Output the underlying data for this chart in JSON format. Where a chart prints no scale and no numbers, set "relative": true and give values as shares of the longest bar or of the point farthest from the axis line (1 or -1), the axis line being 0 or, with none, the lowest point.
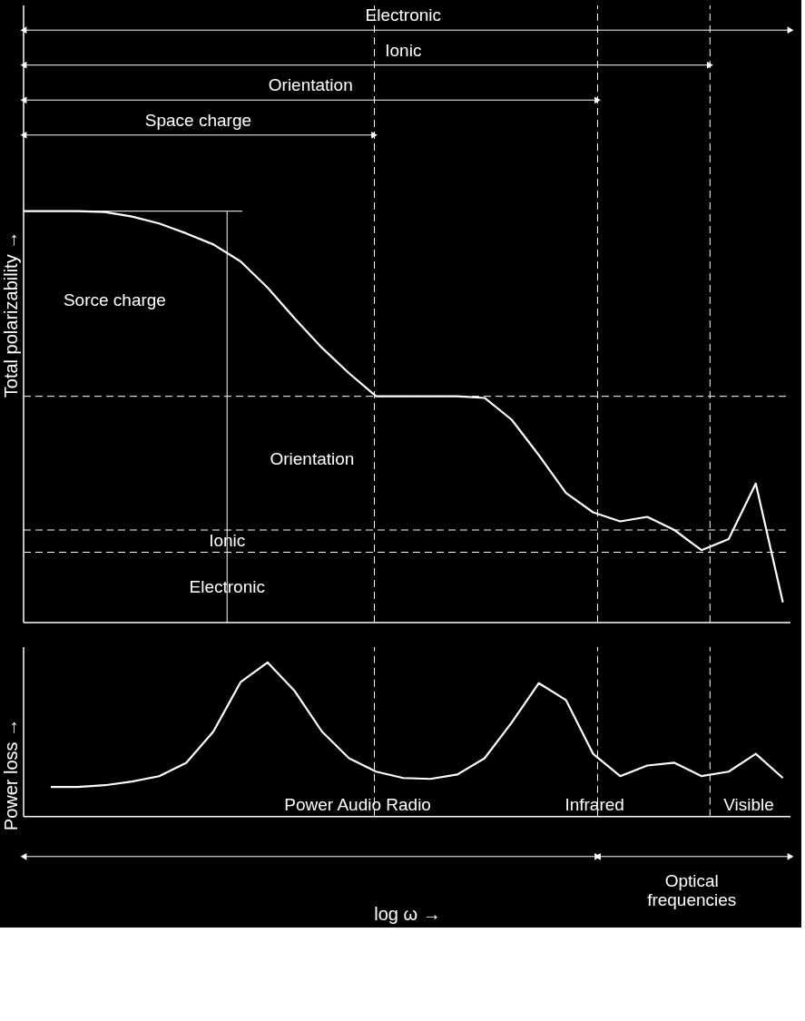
{
  "chart_data": [
    {
      "type": "line",
      "relative": true,
      "ylabel": "Total polarizability →",
      "grid": false,
      "line_style": "solid",
      "categories": [
        null,
        null,
        null,
        null,
        null,
        null,
        null,
        null,
        null,
        null,
        null,
        null,
        null,
        null,
        null,
        null,
        null,
        null,
        null,
        null,
        null,
        null,
        null,
        null,
        null,
        null,
        null,
        null,
        null
      ],
      "series": [
        {
          "color": "#ffffff",
          "values": [
            1.0,
            1.0,
            1.0,
            0.998,
            0.987,
            0.97,
            0.946,
            0.919,
            0.878,
            0.814,
            0.739,
            0.668,
            0.606,
            0.55,
            0.55,
            0.55,
            0.55,
            0.546,
            0.493,
            0.407,
            0.315,
            0.268,
            0.246,
            0.257,
            0.225,
            0.176,
            0.203,
            0.338,
            0.049
          ]
        }
      ],
      "ref_lines": [
        {
          "axis": "y",
          "value": 0.55,
          "line_style": "dashed"
        },
        {
          "axis": "y",
          "value": 0.225,
          "line_style": "dashed"
        },
        {
          "axis": "y",
          "value": 0.171,
          "line_style": "dashed"
        }
      ],
      "annotations": [
        "Electronic",
        "Ionic",
        "Orientation",
        "Space charge",
        "Sorce charge",
        "Orientation",
        "Ionic",
        "Electronic"
      ]
    },
    {
      "type": "line",
      "relative": true,
      "ylabel": "Power loss →",
      "xlabel": "log ω →",
      "grid": false,
      "line_style": "solid",
      "categories": [
        null,
        null,
        null,
        null,
        null,
        null,
        null,
        null,
        null,
        null,
        null,
        null,
        null,
        null,
        null,
        null,
        null,
        null,
        null,
        null,
        null,
        null,
        null,
        null,
        null,
        null,
        null,
        null,
        null
      ],
      "series": [
        {
          "color": "#ffffff",
          "values": [
            null,
            0.192,
            0.192,
            0.203,
            0.227,
            0.262,
            0.349,
            0.552,
            0.872,
            1.0,
            0.814,
            0.552,
            0.378,
            0.291,
            0.25,
            0.244,
            0.273,
            0.378,
            0.61,
            0.866,
            0.756,
            0.407,
            0.262,
            0.331,
            0.349,
            0.262,
            0.291,
            0.407,
            0.25
          ]
        }
      ],
      "annotations": [
        "Power Audio Radio",
        "Infrared",
        "Visible",
        "Optical frequencies"
      ]
    }
  ]
}
